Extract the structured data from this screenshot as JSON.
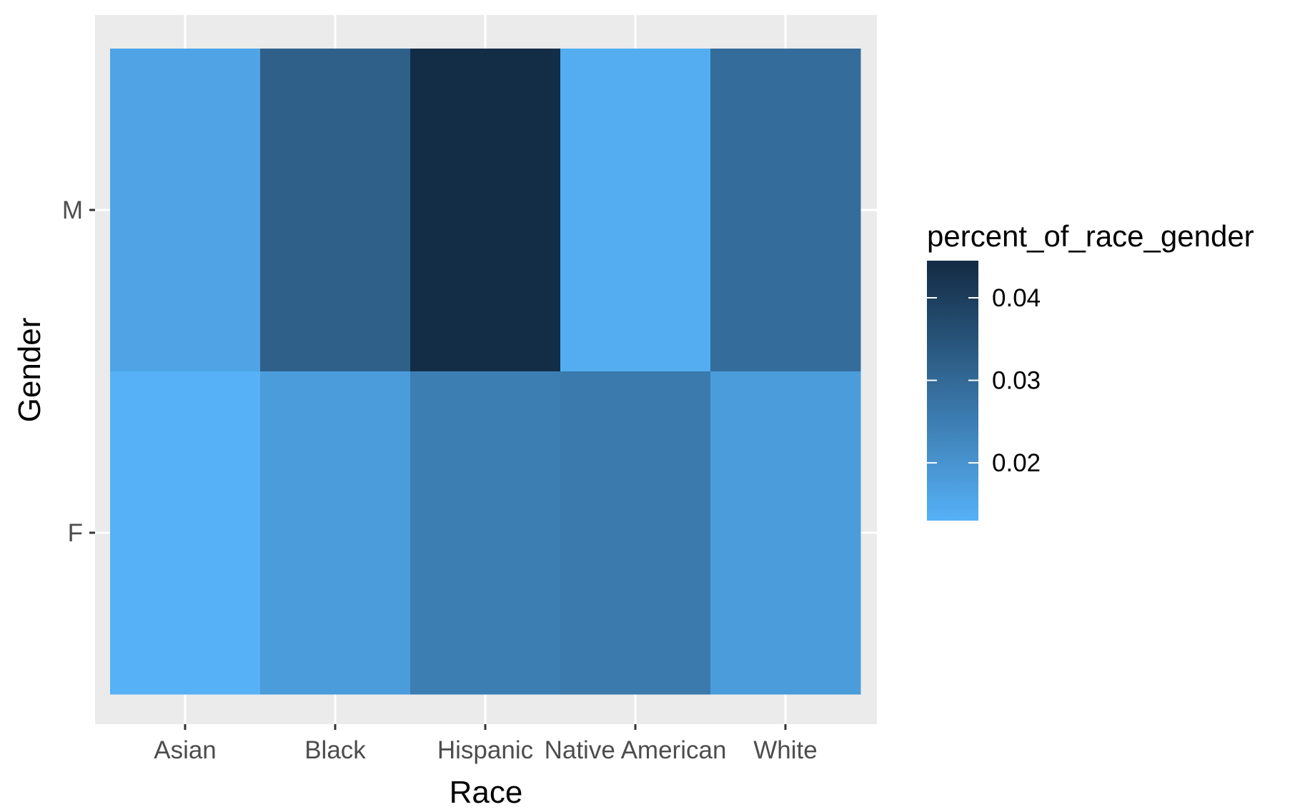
{
  "chart_data": {
    "type": "heatmap",
    "title": "",
    "xlabel": "Race",
    "ylabel": "Gender",
    "x_categories": [
      "Asian",
      "Black",
      "Hispanic",
      "Native American",
      "White"
    ],
    "y_categories": [
      "F",
      "M"
    ],
    "cells": [
      {
        "x": "Asian",
        "y": "M",
        "value": 0.016
      },
      {
        "x": "Black",
        "y": "M",
        "value": 0.032
      },
      {
        "x": "Hispanic",
        "y": "M",
        "value": 0.044
      },
      {
        "x": "Native American",
        "y": "M",
        "value": 0.014
      },
      {
        "x": "White",
        "y": "M",
        "value": 0.029
      },
      {
        "x": "Asian",
        "y": "F",
        "value": 0.013
      },
      {
        "x": "Black",
        "y": "F",
        "value": 0.018
      },
      {
        "x": "Hispanic",
        "y": "F",
        "value": 0.025
      },
      {
        "x": "Native American",
        "y": "F",
        "value": 0.026
      },
      {
        "x": "White",
        "y": "F",
        "value": 0.018
      }
    ],
    "legend": {
      "title": "percent_of_race_gender",
      "placement": "right",
      "breaks": [
        0.02,
        0.03,
        0.04
      ],
      "break_labels": [
        "0.02",
        "0.03",
        "0.04"
      ],
      "range": [
        0.013,
        0.0445
      ],
      "low_color": "#56B1F7",
      "high_color": "#132B43"
    },
    "panel_background": "#EBEBEB",
    "grid_color": "#FFFFFF",
    "grid": true
  }
}
